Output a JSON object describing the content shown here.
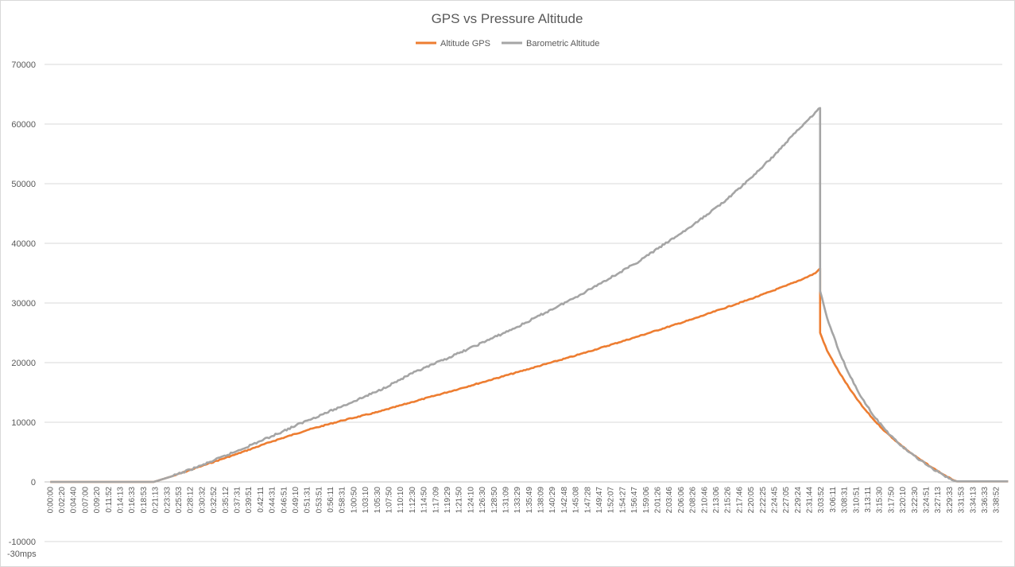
{
  "chart_data": {
    "type": "line",
    "title": "GPS vs Pressure Altitude",
    "xlabel": "",
    "ylabel": "",
    "ylim": [
      -10000,
      70000
    ],
    "y_ticks": [
      "-10000",
      "0",
      "10000",
      "20000",
      "30000",
      "40000",
      "50000",
      "60000",
      "70000"
    ],
    "grid": true,
    "legend_position": "top",
    "x_ticks": [
      "0:00:00",
      "0:02:20",
      "0:04:40",
      "0:07:00",
      "0:09:20",
      "0:11:52",
      "0:14:13",
      "0:16:33",
      "0:18:53",
      "0:21:13",
      "0:23:33",
      "0:25:53",
      "0:28:12",
      "0:30:32",
      "0:32:52",
      "0:35:12",
      "0:37:31",
      "0:39:51",
      "0:42:11",
      "0:44:31",
      "0:46:51",
      "0:49:10",
      "0:51:31",
      "0:53:51",
      "0:56:11",
      "0:58:31",
      "1:00:50",
      "1:03:10",
      "1:05:30",
      "1:07:50",
      "1:10:10",
      "1:12:30",
      "1:14:50",
      "1:17:09",
      "1:19:29",
      "1:21:50",
      "1:24:10",
      "1:26:30",
      "1:28:50",
      "1:31:09",
      "1:33:29",
      "1:35:49",
      "1:38:09",
      "1:40:29",
      "1:42:48",
      "1:45:08",
      "1:47:28",
      "1:49:47",
      "1:52:07",
      "1:54:27",
      "1:56:47",
      "1:59:06",
      "2:01:26",
      "2:03:46",
      "2:06:06",
      "2:08:26",
      "2:10:46",
      "2:13:06",
      "2:15:26",
      "2:17:46",
      "2:20:05",
      "2:22:25",
      "2:24:45",
      "2:27:05",
      "2:29:24",
      "2:31:44",
      "3:03:52",
      "3:06:11",
      "3:08:31",
      "3:10:51",
      "3:13:11",
      "3:15:30",
      "3:17:50",
      "3:20:10",
      "3:22:30",
      "3:24:51",
      "3:27:13",
      "3:29:33",
      "3:31:53",
      "3:34:13",
      "3:36:33",
      "3:38:52"
    ],
    "annotation": "-30mps",
    "series": [
      {
        "name": "Altitude GPS",
        "color": "#ED7D31",
        "x": [
          0,
          8.85,
          10.5,
          13.0,
          16.0,
          19.0,
          22.0,
          25.0,
          28.0,
          31.0,
          35.0,
          40.0,
          45.0,
          50.0,
          55.0,
          60.0,
          63.0,
          64.5,
          65.5,
          65.9,
          65.9,
          66.5,
          67.5,
          68.5,
          69.5,
          70.5,
          71.5,
          72.5,
          73.5,
          74.5,
          75.5,
          76.5,
          77.2,
          77.6,
          80.0,
          82.0
        ],
        "values": [
          0,
          0,
          1000,
          2700,
          4700,
          6800,
          8700,
          10300,
          11700,
          13400,
          15600,
          18400,
          21200,
          24200,
          27300,
          30700,
          32900,
          34100,
          35000,
          35800,
          25000,
          22000,
          18500,
          15400,
          12700,
          10400,
          8400,
          6700,
          5100,
          3700,
          2400,
          1200,
          400,
          100,
          100,
          100
        ]
      },
      {
        "name": "Barometric Altitude",
        "color": "#A5A5A5",
        "x": [
          0,
          8.85,
          10.5,
          13.0,
          16.0,
          19.0,
          22.0,
          25.0,
          28.0,
          31.0,
          35.0,
          40.0,
          45.0,
          50.0,
          55.0,
          58.0,
          60.0,
          62.0,
          63.5,
          64.5,
          65.5,
          65.9,
          65.9,
          66.5,
          67.5,
          68.5,
          69.5,
          70.5,
          71.5,
          72.5,
          73.5,
          74.5,
          75.5,
          76.5,
          77.2,
          77.6,
          80.0,
          82.0
        ],
        "values": [
          0,
          0,
          1000,
          2800,
          5200,
          7700,
          10300,
          12700,
          15200,
          18200,
          21600,
          26000,
          31000,
          36500,
          43000,
          47500,
          51000,
          54800,
          58000,
          60000,
          62000,
          62700,
          32000,
          27500,
          22000,
          17600,
          14000,
          11000,
          8700,
          6700,
          5000,
          3600,
          2300,
          1100,
          300,
          100,
          100,
          100
        ]
      }
    ]
  }
}
